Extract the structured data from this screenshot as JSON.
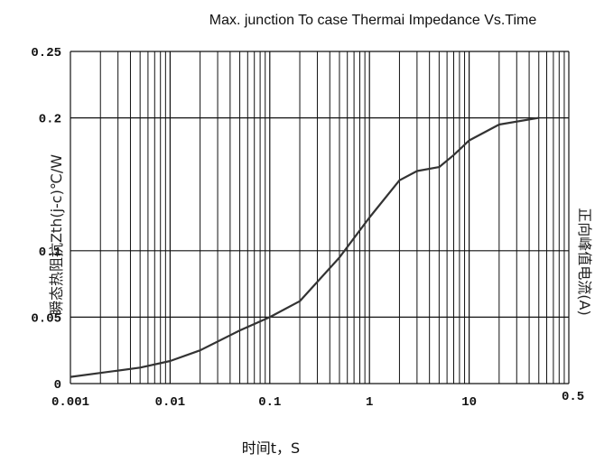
{
  "chart_data": {
    "type": "line",
    "title": "Max. junction To case Thermai Impedance Vs.Time",
    "xlabel": "时间t，S",
    "ylabel_left": "瞬态热阻抗Zth(j-c)℃/W",
    "ylabel_right": "正向峰值电流(A)",
    "x_scale": "log",
    "xlim": [
      0.001,
      100
    ],
    "ylim": [
      0,
      0.25
    ],
    "x_ticks": [
      {
        "value": 0.001,
        "label": "0.001"
      },
      {
        "value": 0.01,
        "label": "0.01"
      },
      {
        "value": 0.1,
        "label": "0.1"
      },
      {
        "value": 1,
        "label": "1"
      },
      {
        "value": 10,
        "label": "10"
      }
    ],
    "y_ticks": [
      {
        "value": 0,
        "label": "0"
      },
      {
        "value": 0.05,
        "label": "0.05"
      },
      {
        "value": 0.1,
        "label": "0.1"
      },
      {
        "value": 0.2,
        "label": "0.2"
      },
      {
        "value": 0.25,
        "label": "0.25"
      }
    ],
    "right_tick_label": "0.5",
    "grid": true,
    "series": [
      {
        "color": "#333333",
        "x": [
          0.001,
          0.002,
          0.005,
          0.01,
          0.02,
          0.05,
          0.1,
          0.2,
          0.5,
          1,
          2,
          3,
          5,
          7,
          10,
          20,
          50
        ],
        "y": [
          0.005,
          0.008,
          0.012,
          0.017,
          0.025,
          0.04,
          0.05,
          0.062,
          0.095,
          0.125,
          0.153,
          0.16,
          0.163,
          0.172,
          0.183,
          0.195,
          0.2
        ]
      }
    ]
  }
}
